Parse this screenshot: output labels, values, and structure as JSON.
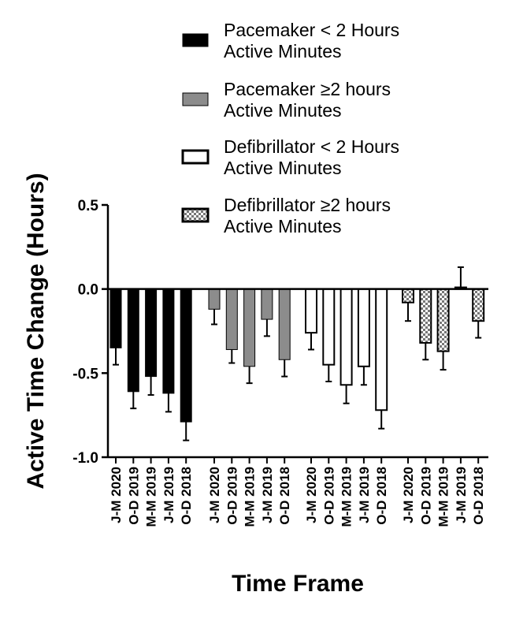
{
  "chart_data": {
    "type": "bar",
    "title": "",
    "xlabel": "Time Frame",
    "ylabel": "Active Time Change (Hours)",
    "ylim": [
      -1.0,
      0.5
    ],
    "yticks": [
      "0.5",
      "0.0",
      "-0.5",
      "-1.0"
    ],
    "grid": false,
    "legend_position": "top-right",
    "categories": [
      "J-M 2020",
      "O-D 2019",
      "M-M 2019",
      "J-M 2019",
      "O-D 2018"
    ],
    "series": [
      {
        "name": "Pacemaker < 2 Hours Active Minutes",
        "style": "solid-black",
        "color": "#000000",
        "values": [
          -0.35,
          -0.61,
          -0.52,
          -0.62,
          -0.79
        ],
        "errors": [
          0.1,
          0.1,
          0.11,
          0.11,
          0.11
        ]
      },
      {
        "name": "Pacemaker ≥2 hours Active Minutes",
        "style": "solid-gray",
        "color": "#8c8c8c",
        "values": [
          -0.12,
          -0.36,
          -0.46,
          -0.18,
          -0.42
        ],
        "errors": [
          0.09,
          0.08,
          0.1,
          0.1,
          0.1
        ]
      },
      {
        "name": "Defibrillator < 2 Hours Active Minutes",
        "style": "open-white",
        "color": "#ffffff",
        "values": [
          -0.26,
          -0.45,
          -0.57,
          -0.46,
          -0.72
        ],
        "errors": [
          0.1,
          0.1,
          0.11,
          0.11,
          0.11
        ]
      },
      {
        "name": "Defibrillator ≥2 hours Active Minutes",
        "style": "checkered",
        "color": "#777777",
        "values": [
          -0.08,
          -0.32,
          -0.37,
          0.01,
          -0.19
        ],
        "errors": [
          0.11,
          0.1,
          0.11,
          0.12,
          0.1
        ]
      }
    ]
  }
}
